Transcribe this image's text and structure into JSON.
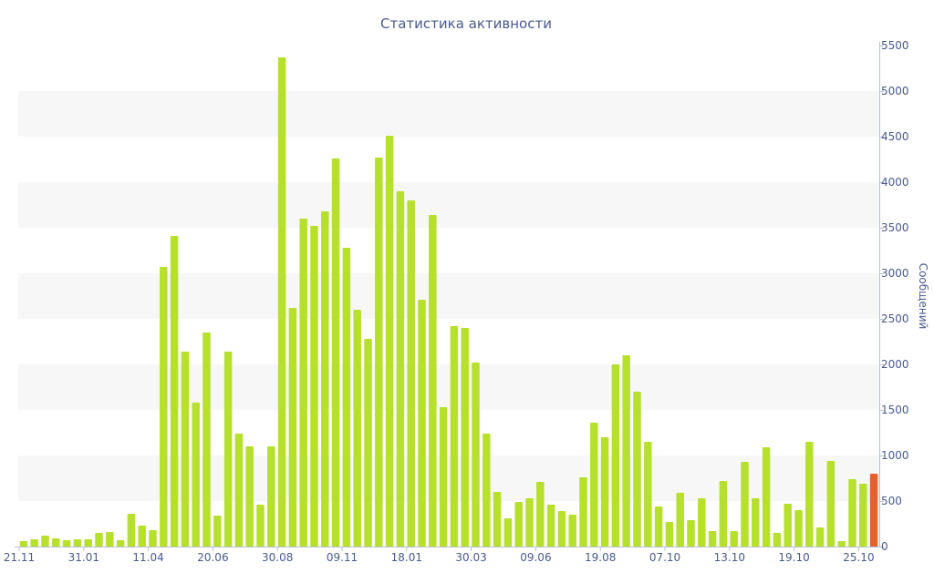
{
  "chart_data": {
    "type": "bar",
    "title": "Статистика активности",
    "xlabel": "",
    "ylabel": "Сообщений",
    "ylim": [
      0,
      5500
    ],
    "y_axis_position": "right",
    "y_ticks": [
      0,
      500,
      1000,
      1500,
      2000,
      2500,
      3000,
      3500,
      4000,
      4500,
      5000,
      5500
    ],
    "x_tick_labels": [
      {
        "index": 0,
        "label": "21.11"
      },
      {
        "index": 6,
        "label": "31.01"
      },
      {
        "index": 12,
        "label": "11.04"
      },
      {
        "index": 18,
        "label": "20.06"
      },
      {
        "index": 24,
        "label": "30.08"
      },
      {
        "index": 30,
        "label": "09.11"
      },
      {
        "index": 36,
        "label": "18.01"
      },
      {
        "index": 42,
        "label": "30.03"
      },
      {
        "index": 48,
        "label": "09.06"
      },
      {
        "index": 54,
        "label": "19.08"
      },
      {
        "index": 60,
        "label": "07.10"
      },
      {
        "index": 66,
        "label": "13.10"
      },
      {
        "index": 72,
        "label": "19.10"
      },
      {
        "index": 78,
        "label": "25.10"
      }
    ],
    "grid": "alternating horizontal bands",
    "colors": {
      "bar": "#b6e02c",
      "current_bar": "#e2612c",
      "band": "#f7f7f7",
      "text": "#4a5a8c",
      "axis": "#b8c0d8"
    },
    "values": [
      60,
      80,
      120,
      90,
      70,
      80,
      80,
      150,
      160,
      70,
      360,
      230,
      180,
      3070,
      3410,
      2140,
      1580,
      2350,
      340,
      2140,
      1240,
      1100,
      460,
      1100,
      5370,
      2620,
      3600,
      3520,
      3680,
      4260,
      3280,
      2600,
      2280,
      4270,
      4510,
      3900,
      3800,
      2710,
      3640,
      1530,
      2420,
      2400,
      2020,
      1240,
      600,
      310,
      490,
      530,
      710,
      460,
      390,
      350,
      760,
      1360,
      1200,
      2000,
      2100,
      1700,
      1150,
      440,
      270,
      590,
      290,
      530,
      170,
      720,
      170,
      930,
      530,
      1090,
      150,
      470,
      400,
      1150,
      210,
      940,
      60,
      740,
      690,
      800
    ],
    "highlight_index": 79
  }
}
